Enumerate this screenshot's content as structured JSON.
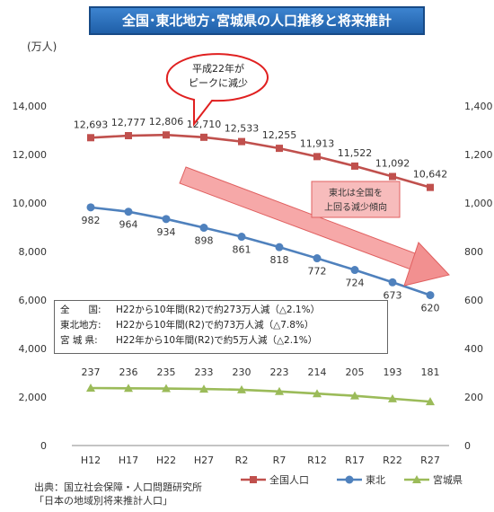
{
  "title": "全国･東北地方･宮城県の人口推移と将来推計",
  "y_unit_label": "(万人)",
  "chart_data": {
    "type": "line",
    "categories": [
      "H12",
      "H17",
      "H22",
      "H27",
      "R2",
      "R7",
      "R12",
      "R17",
      "R22",
      "R27"
    ],
    "left_axis": {
      "ticks": [
        "0",
        "2,000",
        "4,000",
        "6,000",
        "8,000",
        "10,000",
        "12,000",
        "14,000"
      ],
      "ylim": [
        0,
        14000
      ]
    },
    "right_axis": {
      "ticks": [
        "0",
        "200",
        "400",
        "600",
        "800",
        "1,000",
        "1,200",
        "1,400"
      ],
      "ylim": [
        0,
        1400
      ]
    },
    "grid": false,
    "legend_position": "bottom-right",
    "series": [
      {
        "name": "全国人口",
        "axis": "left",
        "color": "#c0504d",
        "values": [
          12693,
          12777,
          12806,
          12710,
          12533,
          12255,
          11913,
          11522,
          11092,
          10642
        ],
        "labels": [
          "12,693",
          "12,777",
          "12,806",
          "12,710",
          "12,533",
          "12,255",
          "11,913",
          "11,522",
          "11,092",
          "10,642"
        ]
      },
      {
        "name": "東北",
        "axis": "right",
        "color": "#4f81bd",
        "values": [
          982,
          964,
          934,
          898,
          861,
          818,
          772,
          724,
          673,
          620
        ],
        "labels": [
          "982",
          "964",
          "934",
          "898",
          "861",
          "818",
          "772",
          "724",
          "673",
          "620"
        ]
      },
      {
        "name": "宮城県",
        "axis": "right",
        "color": "#9bbb59",
        "values": [
          237,
          236,
          235,
          233,
          230,
          223,
          214,
          205,
          193,
          181
        ],
        "labels": [
          "237",
          "236",
          "235",
          "233",
          "230",
          "223",
          "214",
          "205",
          "193",
          "181"
        ]
      }
    ]
  },
  "annotations": {
    "peak_bubble": [
      "平成22年が",
      "ピークに減少"
    ],
    "decline_box": [
      "東北は全国を",
      "上回る減少傾向"
    ]
  },
  "notes": [
    {
      "label": "全　　国:",
      "text": "H22から10年間(R2)で約273万人減（△2.1%）"
    },
    {
      "label": "東北地方:",
      "text": "H22から10年間(R2)で約73万人減（△7.8%）"
    },
    {
      "label": "宮 城 県:",
      "text": "H22年から10年間(R2)で約5万人減（△2.1%）"
    }
  ],
  "source": [
    "出典：国立社会保障・人口問題研究所",
    "「日本の地域別将来推計人口」"
  ]
}
